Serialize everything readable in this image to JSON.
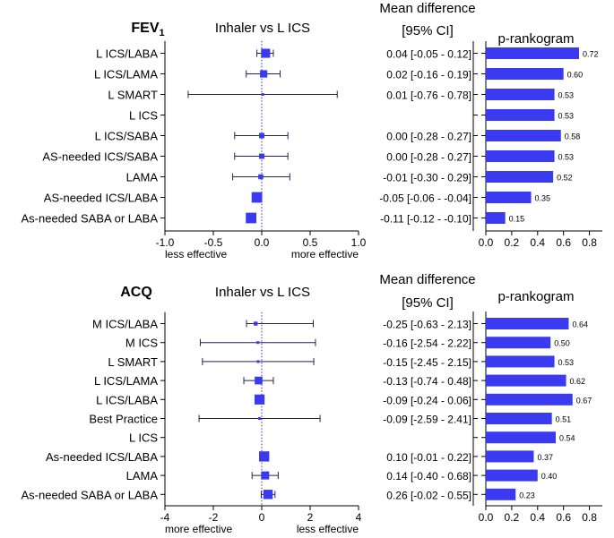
{
  "chart_data": [
    {
      "type": "forest",
      "outcome": "FEV1",
      "outcome_main": "FEV",
      "outcome_sub": "1",
      "forest_title": "Inhaler vs L ICS",
      "md_header": [
        "Mean difference",
        "[95% CI]"
      ],
      "rank_title": "p-rankogram",
      "xlim": [
        -1.0,
        1.0
      ],
      "xticks": [
        "-1.0",
        "-0.5",
        "0.0",
        "0.5",
        "1.0"
      ],
      "xtick_values": [
        -1.0,
        -0.5,
        0.0,
        0.5,
        1.0
      ],
      "left_label": "less effective",
      "right_label": "more effective",
      "rank_xlim": [
        0,
        0.9
      ],
      "rank_ticks": [
        "0.0",
        "0.2",
        "0.4",
        "0.6",
        "0.8"
      ],
      "rank_tick_values": [
        0.0,
        0.2,
        0.4,
        0.6,
        0.8
      ],
      "rows": [
        {
          "label": "L ICS/LABA",
          "est": 0.04,
          "lo": -0.05,
          "hi": 0.12,
          "ci_text": "0.04 [-0.05 - 0.12]",
          "rank": 0.72,
          "rank_text": "0.72"
        },
        {
          "label": "L ICS/LAMA",
          "est": 0.02,
          "lo": -0.16,
          "hi": 0.19,
          "ci_text": "0.02 [-0.16 - 0.19]",
          "rank": 0.6,
          "rank_text": "0.60"
        },
        {
          "label": "L SMART",
          "est": 0.01,
          "lo": -0.76,
          "hi": 0.78,
          "ci_text": "0.01 [-0.76 - 0.78]",
          "rank": 0.53,
          "rank_text": "0.53"
        },
        {
          "label": "L ICS",
          "est": null,
          "lo": null,
          "hi": null,
          "ci_text": "",
          "rank": 0.53,
          "rank_text": "0.53"
        },
        {
          "label": "L ICS/SABA",
          "est": 0.0,
          "lo": -0.28,
          "hi": 0.27,
          "ci_text": "0.00 [-0.28 - 0.27]",
          "rank": 0.58,
          "rank_text": "0.58"
        },
        {
          "label": "AS-needed ICS/SABA",
          "est": 0.0,
          "lo": -0.28,
          "hi": 0.27,
          "ci_text": "0.00 [-0.28 - 0.27]",
          "rank": 0.53,
          "rank_text": "0.53"
        },
        {
          "label": "LAMA",
          "est": -0.01,
          "lo": -0.3,
          "hi": 0.29,
          "ci_text": "-0.01 [-0.30 - 0.29]",
          "rank": 0.52,
          "rank_text": "0.52"
        },
        {
          "label": "AS-needed ICS/LABA",
          "est": -0.05,
          "lo": -0.06,
          "hi": -0.04,
          "ci_text": "-0.05 [-0.06 - -0.04]",
          "rank": 0.35,
          "rank_text": "0.35"
        },
        {
          "label": "As-needed SABA or LABA",
          "est": -0.11,
          "lo": -0.12,
          "hi": -0.1,
          "ci_text": "-0.11 [-0.12 - -0.10]",
          "rank": 0.15,
          "rank_text": "0.15"
        }
      ]
    },
    {
      "type": "forest",
      "outcome": "ACQ",
      "outcome_main": "ACQ",
      "outcome_sub": "",
      "forest_title": "Inhaler vs L ICS",
      "md_header": [
        "Mean difference",
        "[95% CI]"
      ],
      "rank_title": "p-rankogram",
      "xlim": [
        -4,
        4
      ],
      "xticks": [
        "-4",
        "-2",
        "0",
        "2",
        "4"
      ],
      "xtick_values": [
        -4,
        -2,
        0,
        2,
        4
      ],
      "left_label": "more effective",
      "right_label": "less effective",
      "rank_xlim": [
        0,
        0.9
      ],
      "rank_ticks": [
        "0.0",
        "0.2",
        "0.4",
        "0.6",
        "0.8"
      ],
      "rank_tick_values": [
        0.0,
        0.2,
        0.4,
        0.6,
        0.8
      ],
      "rows": [
        {
          "label": "M ICS/LABA",
          "est": -0.25,
          "lo": -0.63,
          "hi": 2.13,
          "ci_text": "-0.25 [-0.63 - 2.13]",
          "rank": 0.64,
          "rank_text": "0.64"
        },
        {
          "label": "M ICS",
          "est": -0.16,
          "lo": -2.54,
          "hi": 2.22,
          "ci_text": "-0.16 [-2.54 - 2.22]",
          "rank": 0.5,
          "rank_text": "0.50"
        },
        {
          "label": "L SMART",
          "est": -0.15,
          "lo": -2.45,
          "hi": 2.15,
          "ci_text": "-0.15 [-2.45 - 2.15]",
          "rank": 0.53,
          "rank_text": "0.53"
        },
        {
          "label": "L ICS/LAMA",
          "est": -0.13,
          "lo": -0.74,
          "hi": 0.48,
          "ci_text": "-0.13 [-0.74 - 0.48]",
          "rank": 0.62,
          "rank_text": "0.62"
        },
        {
          "label": "L ICS/LABA",
          "est": -0.09,
          "lo": -0.24,
          "hi": 0.06,
          "ci_text": "-0.09 [-0.24 - 0.06]",
          "rank": 0.67,
          "rank_text": "0.67"
        },
        {
          "label": "Best Practice",
          "est": -0.09,
          "lo": -2.59,
          "hi": 2.41,
          "ci_text": "-0.09 [-2.59 - 2.41]",
          "rank": 0.51,
          "rank_text": "0.51"
        },
        {
          "label": "L ICS",
          "est": null,
          "lo": null,
          "hi": null,
          "ci_text": "",
          "rank": 0.54,
          "rank_text": "0.54"
        },
        {
          "label": "As-needed ICS/LABA",
          "est": 0.1,
          "lo": -0.01,
          "hi": 0.22,
          "ci_text": "0.10 [-0.01 - 0.22]",
          "rank": 0.37,
          "rank_text": "0.37"
        },
        {
          "label": "LAMA",
          "est": 0.14,
          "lo": -0.4,
          "hi": 0.68,
          "ci_text": "0.14 [-0.40 - 0.68]",
          "rank": 0.4,
          "rank_text": "0.40"
        },
        {
          "label": "As-needed SABA or LABA",
          "est": 0.26,
          "lo": -0.02,
          "hi": 0.55,
          "ci_text": "0.26 [-0.02 - 0.55]",
          "rank": 0.23,
          "rank_text": "0.23"
        }
      ]
    }
  ]
}
